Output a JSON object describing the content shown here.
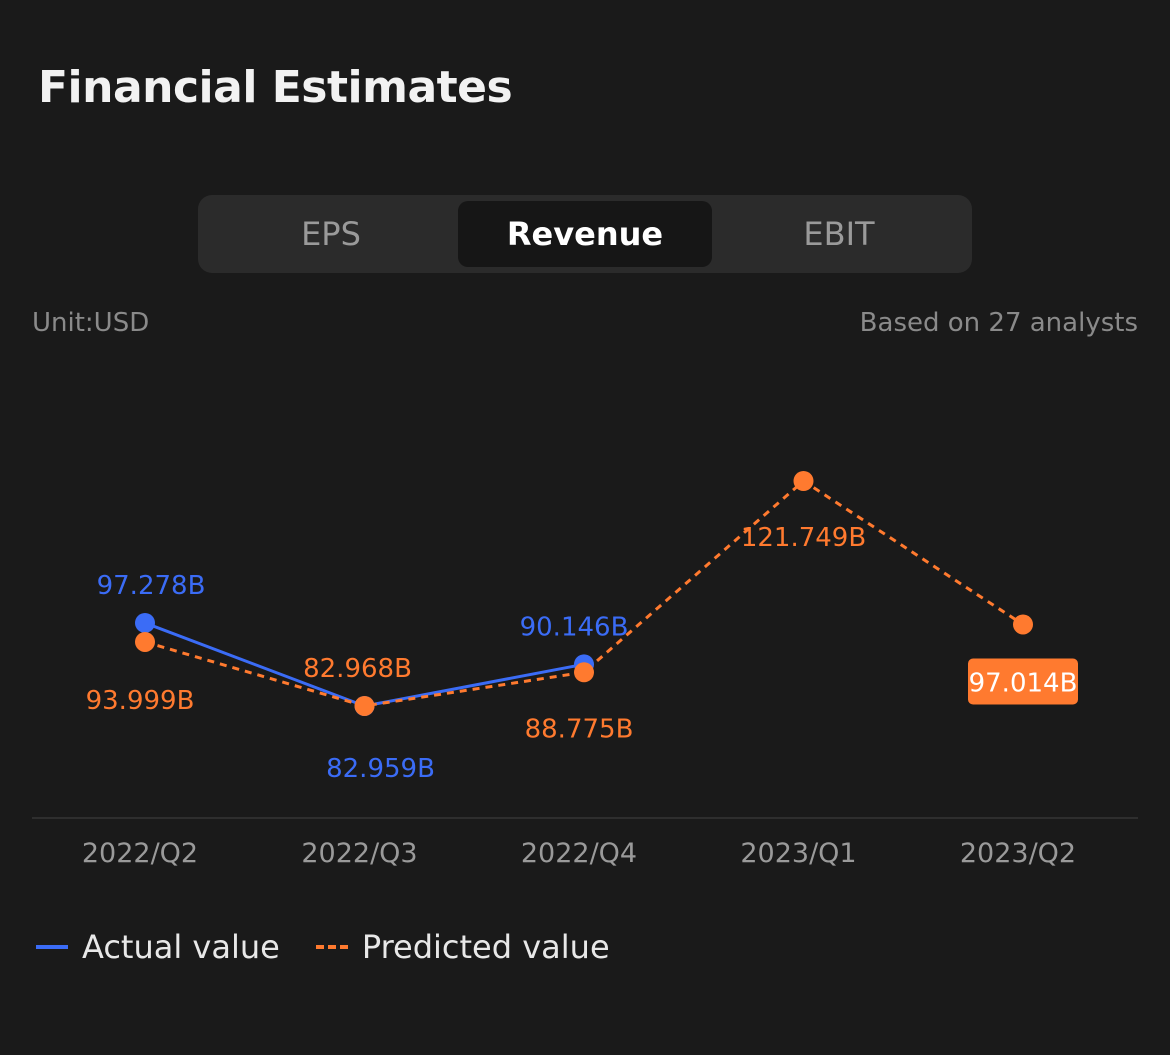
{
  "header": {
    "title": "Financial Estimates"
  },
  "tabs": [
    {
      "label": "EPS",
      "active": false
    },
    {
      "label": "Revenue",
      "active": true
    },
    {
      "label": "EBIT",
      "active": false
    }
  ],
  "meta": {
    "unit": "Unit:USD",
    "analysts": "Based on 27 analysts"
  },
  "colors": {
    "actual": "#3b6cf6",
    "predicted": "#ff7a2f",
    "background": "#1a1a1a"
  },
  "chart_data": {
    "type": "line",
    "title": "",
    "xlabel": "",
    "ylabel": "",
    "categories": [
      "2022/Q2",
      "2022/Q3",
      "2022/Q4",
      "2023/Q1",
      "2023/Q2"
    ],
    "series": [
      {
        "name": "Actual value",
        "style": "solid",
        "color": "#3b6cf6",
        "values": [
          97.278,
          82.959,
          90.146,
          null,
          null
        ],
        "labels": [
          "97.278B",
          "82.959B",
          "90.146B",
          null,
          null
        ]
      },
      {
        "name": "Predicted value",
        "style": "dashed",
        "color": "#ff7a2f",
        "values": [
          93.999,
          82.968,
          88.775,
          121.749,
          97.014
        ],
        "labels": [
          "93.999B",
          "82.968B",
          "88.775B",
          "121.749B",
          "97.014B"
        ]
      }
    ],
    "highlighted": {
      "series": 1,
      "index": 4
    },
    "grid": false,
    "legend": "bottom-left"
  }
}
